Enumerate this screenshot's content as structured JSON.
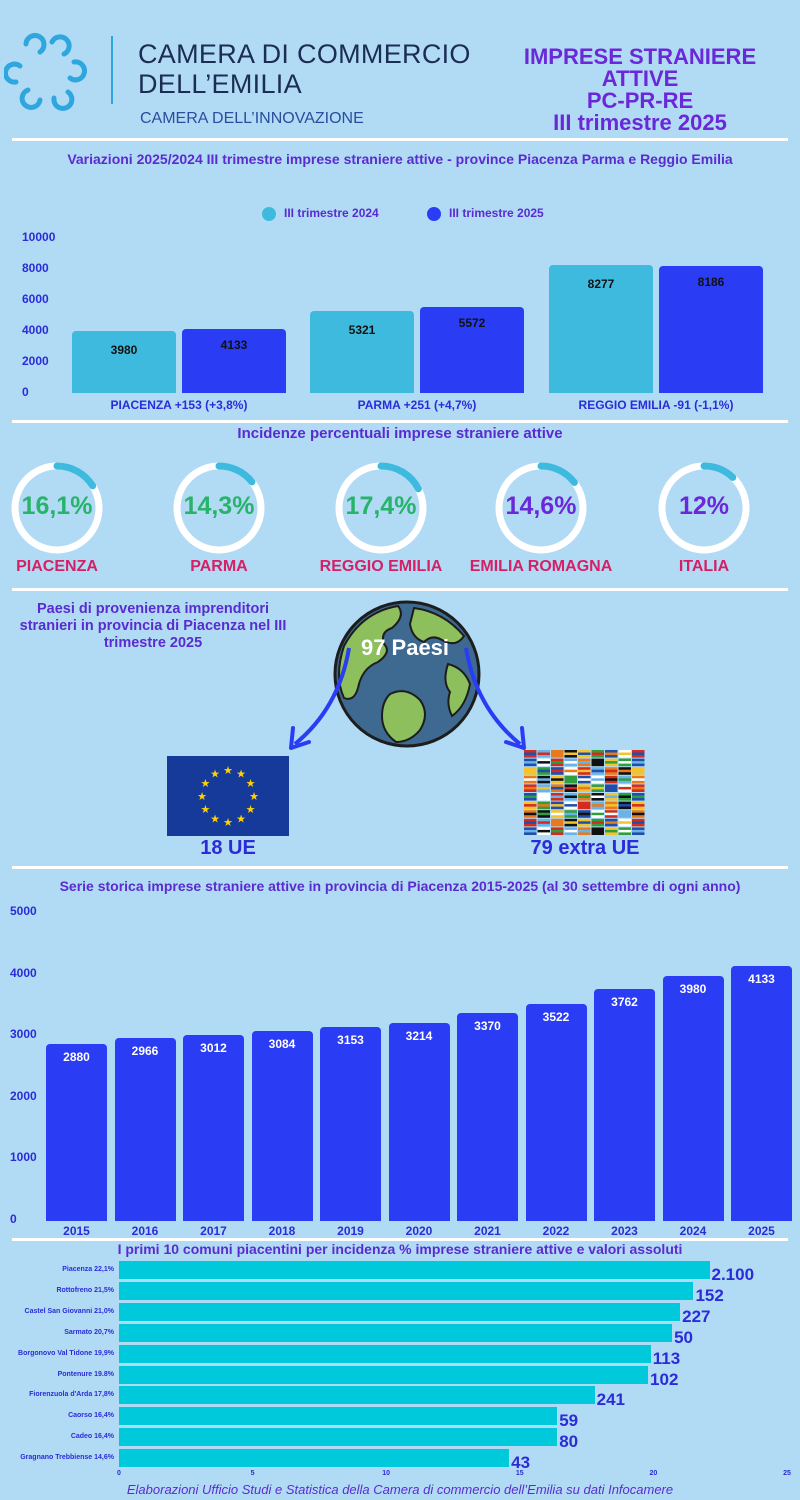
{
  "header": {
    "org_line1": "CAMERA DI COMMERCIO",
    "org_line2": "DELL’EMILIA",
    "org_sub": "CAMERA DELL’INNOVAZIONE",
    "title_lines": [
      "IMPRESE STRANIERE",
      "ATTIVE",
      "PC-PR-RE",
      "III trimestre 2025"
    ]
  },
  "colors": {
    "series_2024": "#3ebade",
    "series_2025": "#2b3cf5",
    "hbar": "#00c9dc",
    "accent": "#6a28d9"
  },
  "chart_data": [
    {
      "type": "bar",
      "title": "Variazioni 2025/2024 III trimestre imprese straniere attive - province Piacenza Parma e Reggio Emilia",
      "categories": [
        "PIACENZA +153 (+3,8%)",
        "PARMA +251 (+4,7%)",
        "REGGIO EMILIA -91 (-1,1%)"
      ],
      "series": [
        {
          "name": "III trimestre 2024",
          "values": [
            3980,
            5321,
            8277
          ]
        },
        {
          "name": "III trimestre 2025",
          "values": [
            4133,
            5572,
            8186
          ]
        }
      ],
      "value_labels": [
        [
          "3980",
          "5321",
          "8277"
        ],
        [
          "4133",
          "5572",
          "8186"
        ]
      ],
      "ylim": [
        0,
        10000
      ],
      "yticks": [
        "0",
        "2000",
        "4000",
        "6000",
        "8000",
        "10000"
      ],
      "legend": "top-center",
      "grid": false
    },
    {
      "type": "pie",
      "title": "Incidenze percentuali imprese straniere attive",
      "categories": [
        "PIACENZA",
        "PARMA",
        "REGGIO EMILIA",
        "EMILIA ROMAGNA",
        "ITALIA"
      ],
      "values": [
        16.1,
        14.3,
        17.4,
        14.6,
        12
      ],
      "value_labels": [
        "16,1%",
        "14,3%",
        "17,4%",
        "14,6%",
        "12%"
      ]
    },
    {
      "type": "bar",
      "title": "Serie storica imprese straniere attive in provincia di Piacenza 2015-2025 (al 30 settembre di ogni anno)",
      "categories": [
        "2015",
        "2016",
        "2017",
        "2018",
        "2019",
        "2020",
        "2021",
        "2022",
        "2023",
        "2024",
        "2025"
      ],
      "values": [
        2880,
        2966,
        3012,
        3084,
        3153,
        3214,
        3370,
        3522,
        3762,
        3980,
        4133
      ],
      "ylim": [
        0,
        5000
      ],
      "yticks": [
        "0",
        "1000",
        "2000",
        "3000",
        "4000",
        "5000"
      ],
      "grid": false
    },
    {
      "type": "bar",
      "orientation": "horizontal",
      "title": "I primi 10 comuni piacentini per incidenza % imprese straniere attive e valori assoluti",
      "categories": [
        "Piacenza 22,1%",
        "Rottofreno 21,5%",
        "Castel San Giovanni 21,0%",
        "Sarmato 20,7%",
        "Borgonovo Val Tidone 19,9%",
        "Pontenure 19.8%",
        "Fiorenzuola d'Arda 17,8%",
        "Caorso 16,4%",
        "Cadeo 16,4%",
        "Gragnano Trebbiense 14,6%"
      ],
      "values": [
        22.1,
        21.5,
        21.0,
        20.7,
        19.9,
        19.8,
        17.8,
        16.4,
        16.4,
        14.6
      ],
      "value_labels": [
        "2.100",
        "152",
        "227",
        "50",
        "113",
        "102",
        "241",
        "59",
        "80",
        "43"
      ],
      "xlim": [
        0,
        25
      ],
      "xticks": [
        "0",
        "5",
        "10",
        "15",
        "20",
        "25"
      ]
    }
  ],
  "countries": {
    "title": "Paesi di provenienza imprenditori stranieri in provincia di Piacenza nel III trimestre 2025",
    "total_label": "97 Paesi",
    "eu_label": "18 UE",
    "extra_label": "79 extra UE"
  },
  "footer": "Elaborazioni Ufficio Studi e Statistica della Camera di commercio  dell’Emilia su dati Infocamere"
}
